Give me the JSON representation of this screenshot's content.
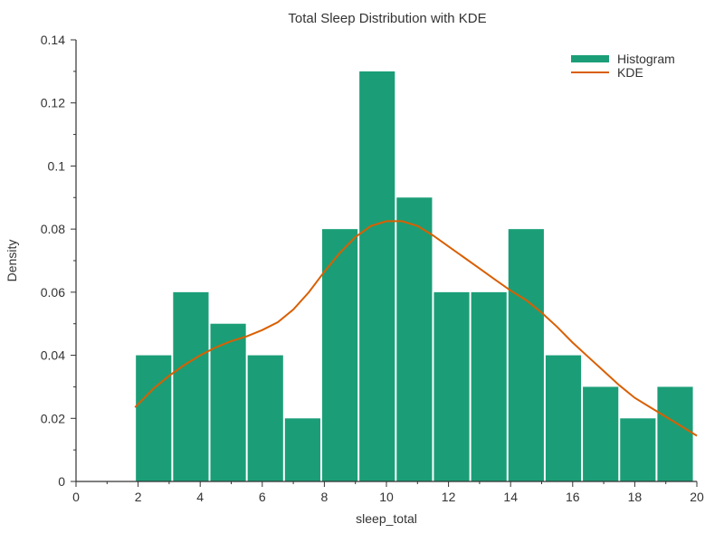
{
  "chart_data": {
    "type": "bar",
    "title": "Total Sleep Distribution with KDE",
    "xlabel": "sleep_total",
    "ylabel": "Density",
    "xlim": [
      0,
      20
    ],
    "ylim": [
      0,
      0.14
    ],
    "x_ticks": [
      "0",
      "2",
      "4",
      "6",
      "8",
      "10",
      "12",
      "14",
      "16",
      "18",
      "20"
    ],
    "y_ticks": [
      "0",
      "0.02",
      "0.04",
      "0.06",
      "0.08",
      "0.1",
      "0.12",
      "0.14"
    ],
    "x_tick_values": [
      0,
      2,
      4,
      6,
      8,
      10,
      12,
      14,
      16,
      18,
      20
    ],
    "y_tick_values": [
      0,
      0.02,
      0.04,
      0.06,
      0.08,
      0.1,
      0.12,
      0.14
    ],
    "grid": false,
    "legend_position": "top-right",
    "series": [
      {
        "name": "Histogram",
        "kind": "histogram",
        "color": "#1b9e77",
        "bins": [
          {
            "x0": 1.9,
            "x1": 3.1,
            "value": 0.04
          },
          {
            "x0": 3.1,
            "x1": 4.3,
            "value": 0.06
          },
          {
            "x0": 4.3,
            "x1": 5.5,
            "value": 0.05
          },
          {
            "x0": 5.5,
            "x1": 6.7,
            "value": 0.04
          },
          {
            "x0": 6.7,
            "x1": 7.9,
            "value": 0.02
          },
          {
            "x0": 7.9,
            "x1": 9.1,
            "value": 0.08
          },
          {
            "x0": 9.1,
            "x1": 10.3,
            "value": 0.13
          },
          {
            "x0": 10.3,
            "x1": 11.5,
            "value": 0.09
          },
          {
            "x0": 11.5,
            "x1": 12.7,
            "value": 0.06
          },
          {
            "x0": 12.7,
            "x1": 13.9,
            "value": 0.06
          },
          {
            "x0": 13.9,
            "x1": 15.1,
            "value": 0.08
          },
          {
            "x0": 15.1,
            "x1": 16.3,
            "value": 0.04
          },
          {
            "x0": 16.3,
            "x1": 17.5,
            "value": 0.03
          },
          {
            "x0": 17.5,
            "x1": 18.7,
            "value": 0.02
          },
          {
            "x0": 18.7,
            "x1": 19.9,
            "value": 0.03
          }
        ]
      },
      {
        "name": "KDE",
        "kind": "line",
        "color": "#d95f02",
        "points": [
          [
            1.9,
            0.0235
          ],
          [
            2.5,
            0.0295
          ],
          [
            3.0,
            0.0335
          ],
          [
            3.5,
            0.037
          ],
          [
            4.0,
            0.04
          ],
          [
            4.5,
            0.0425
          ],
          [
            5.0,
            0.0445
          ],
          [
            5.5,
            0.046
          ],
          [
            6.0,
            0.048
          ],
          [
            6.5,
            0.0505
          ],
          [
            7.0,
            0.0545
          ],
          [
            7.5,
            0.06
          ],
          [
            8.0,
            0.0665
          ],
          [
            8.5,
            0.0725
          ],
          [
            9.0,
            0.0775
          ],
          [
            9.5,
            0.081
          ],
          [
            10.0,
            0.0825
          ],
          [
            10.5,
            0.0825
          ],
          [
            11.0,
            0.081
          ],
          [
            11.5,
            0.078
          ],
          [
            12.0,
            0.0745
          ],
          [
            12.5,
            0.071
          ],
          [
            13.0,
            0.0675
          ],
          [
            13.5,
            0.064
          ],
          [
            14.0,
            0.0605
          ],
          [
            14.5,
            0.0575
          ],
          [
            15.0,
            0.0535
          ],
          [
            15.5,
            0.049
          ],
          [
            16.0,
            0.044
          ],
          [
            16.5,
            0.0395
          ],
          [
            17.0,
            0.035
          ],
          [
            17.5,
            0.0305
          ],
          [
            18.0,
            0.0265
          ],
          [
            18.5,
            0.0235
          ],
          [
            19.0,
            0.0205
          ],
          [
            19.5,
            0.0175
          ],
          [
            20.0,
            0.0145
          ]
        ]
      }
    ]
  }
}
